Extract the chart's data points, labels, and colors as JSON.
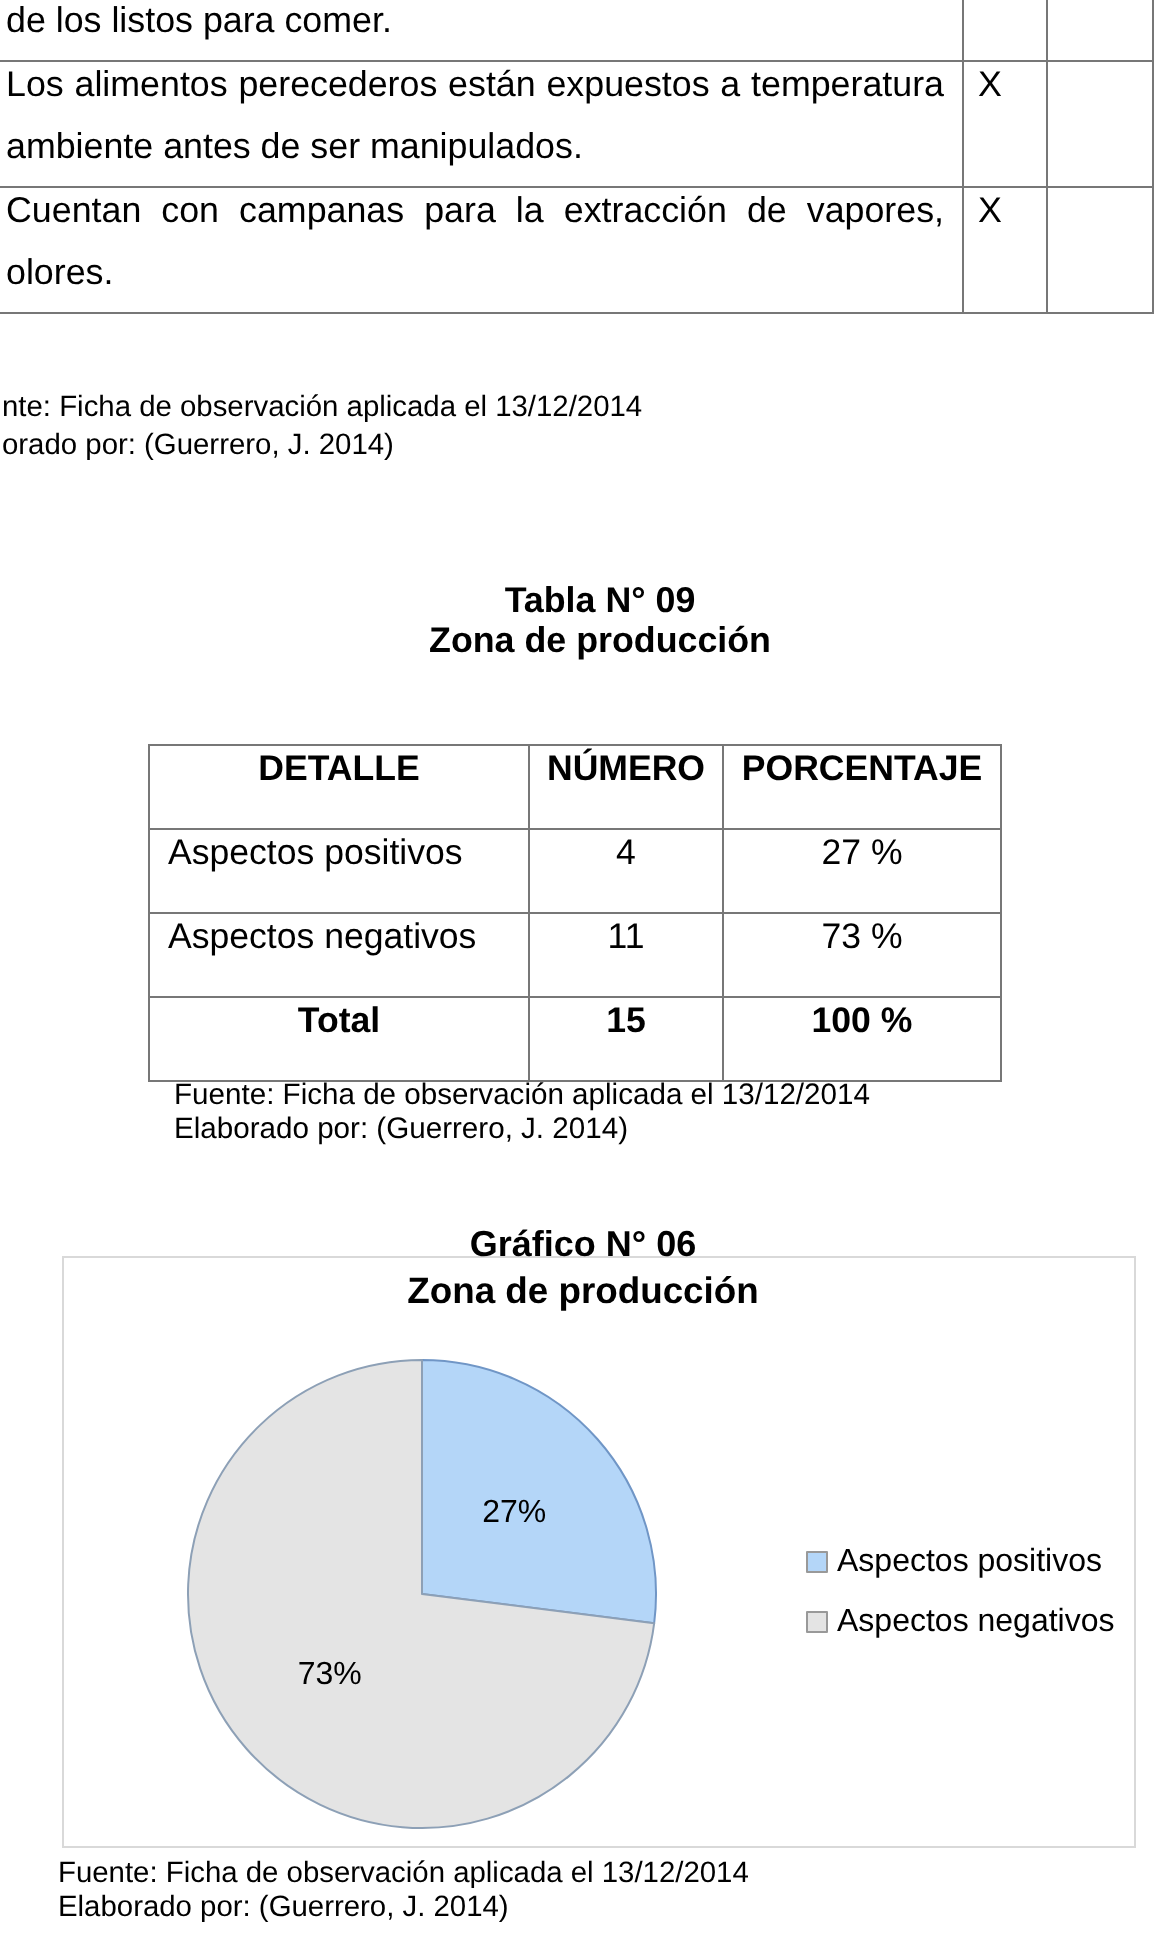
{
  "chart_data": [
    {
      "type": "other",
      "categories": [
        "de los listos para comer.",
        "Los alimentos perecederos están expuestos a temperatura ambiente antes de ser manipulados.",
        "Cuentan con campanas para la extracción de vapores, olores."
      ],
      "value_labels": [
        null,
        "X",
        "X"
      ],
      "annotations": [
        "nte: Ficha de observación aplicada el 13/12/2014",
        "orado por: (Guerrero, J. 2014)"
      ]
    },
    {
      "type": "other",
      "title": "Tabla N° 09",
      "subtitle": "Zona de producción",
      "xlabel": "DETALLE",
      "categories": [
        "Aspectos positivos",
        "Aspectos negativos",
        "Total"
      ],
      "series": [
        {
          "name": "NÚMERO",
          "values": [
            4,
            11,
            15
          ]
        },
        {
          "name": "PORCENTAJE",
          "values": [
            27,
            73,
            100
          ],
          "value_labels": [
            "27 %",
            "73 %",
            "100 %"
          ]
        }
      ],
      "data_labels": true,
      "annotations": [
        "Fuente: Ficha de observación aplicada el 13/12/2014",
        "Elaborado por: (Guerrero, J. 2014)"
      ]
    },
    {
      "type": "pie",
      "title": "Gráfico N° 06",
      "subtitle": "Zona de producción",
      "categories": [
        "Aspectos positivos",
        "Aspectos negativos"
      ],
      "values": [
        27,
        73
      ],
      "colors": [
        "#b4d6f8",
        "#e4e4e4"
      ],
      "value_labels": [
        "27%",
        "73%"
      ],
      "legend": "right",
      "annotations": [
        "Fuente: Ficha de observación aplicada el 13/12/2014",
        "Elaborado por: (Guerrero, J. 2014)"
      ]
    }
  ]
}
